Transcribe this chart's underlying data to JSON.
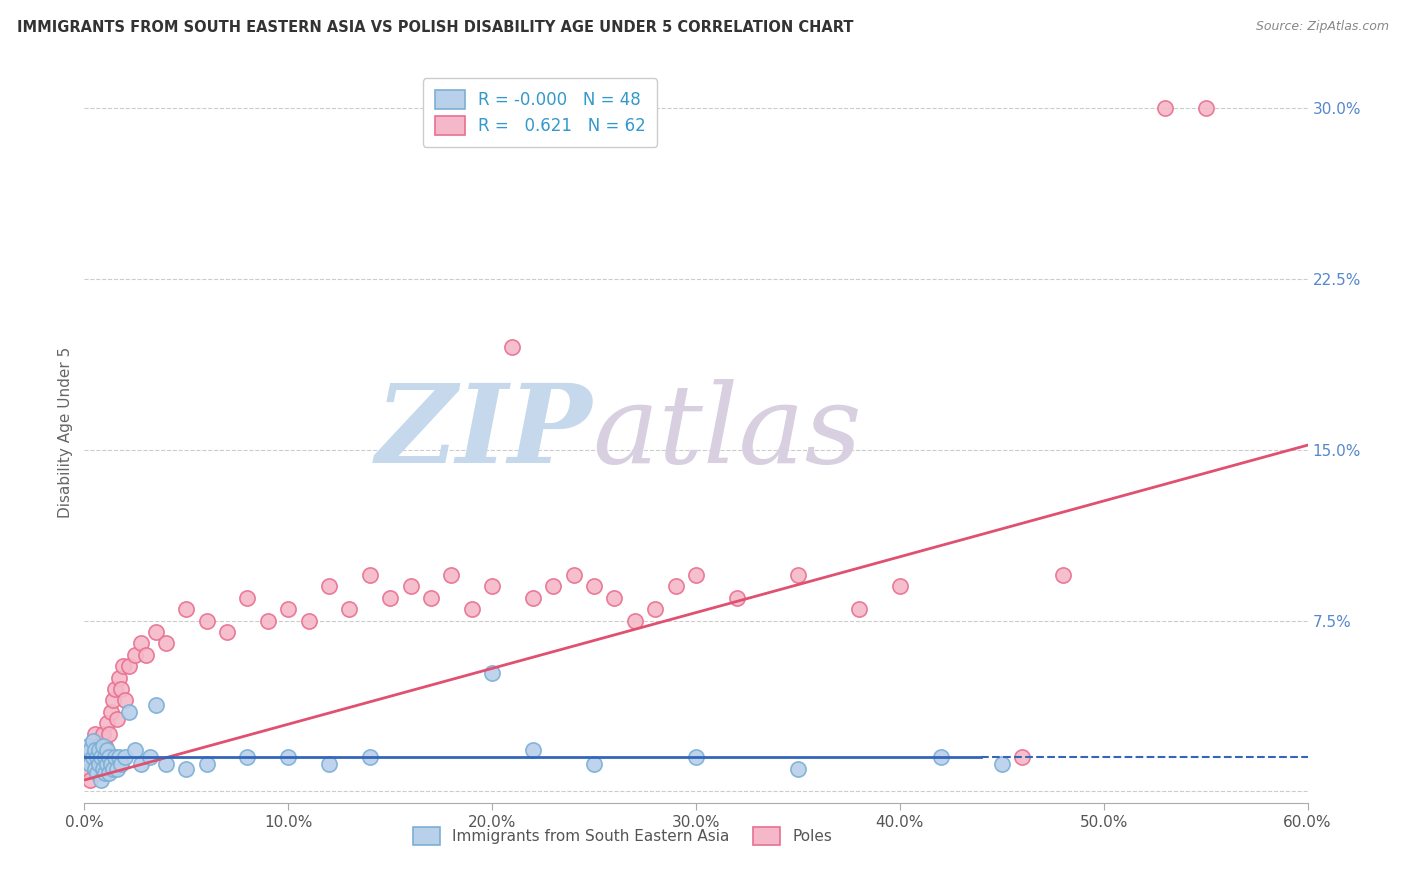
{
  "title": "IMMIGRANTS FROM SOUTH EASTERN ASIA VS POLISH DISABILITY AGE UNDER 5 CORRELATION CHART",
  "source": "Source: ZipAtlas.com",
  "xlabel_vals": [
    0.0,
    10.0,
    20.0,
    30.0,
    40.0,
    50.0,
    60.0
  ],
  "ylabel_vals": [
    0.0,
    7.5,
    15.0,
    22.5,
    30.0
  ],
  "ylabel_label": "Disability Age Under 5",
  "xmin": 0.0,
  "xmax": 60.0,
  "ymin": -0.5,
  "ymax": 32.0,
  "blue_R": "-0.000",
  "blue_N": "48",
  "pink_R": "0.621",
  "pink_N": "62",
  "blue_edge_color": "#7bafd4",
  "blue_face_color": "#b8d0ea",
  "pink_edge_color": "#e87090",
  "pink_face_color": "#f5b8c8",
  "trend_blue_color": "#3366bb",
  "trend_pink_color": "#e05070",
  "legend_label_blue": "Immigrants from South Eastern Asia",
  "legend_label_pink": "Poles",
  "blue_x": [
    0.1,
    0.2,
    0.3,
    0.3,
    0.4,
    0.4,
    0.5,
    0.5,
    0.6,
    0.6,
    0.7,
    0.7,
    0.8,
    0.8,
    0.9,
    0.9,
    1.0,
    1.0,
    1.1,
    1.1,
    1.2,
    1.2,
    1.3,
    1.4,
    1.5,
    1.6,
    1.7,
    1.8,
    2.0,
    2.2,
    2.5,
    2.8,
    3.2,
    3.5,
    4.0,
    5.0,
    6.0,
    8.0,
    10.0,
    12.0,
    14.0,
    20.0,
    22.0,
    25.0,
    30.0,
    35.0,
    42.0,
    45.0
  ],
  "blue_y": [
    1.5,
    2.0,
    1.2,
    1.8,
    1.5,
    2.2,
    1.0,
    1.8,
    0.8,
    1.5,
    1.2,
    1.8,
    0.5,
    1.5,
    1.0,
    2.0,
    0.8,
    1.5,
    1.2,
    1.8,
    0.8,
    1.5,
    1.2,
    1.0,
    1.5,
    1.0,
    1.5,
    1.2,
    1.5,
    3.5,
    1.8,
    1.2,
    1.5,
    3.8,
    1.2,
    1.0,
    1.2,
    1.5,
    1.5,
    1.2,
    1.5,
    5.2,
    1.8,
    1.2,
    1.5,
    1.0,
    1.5,
    1.2
  ],
  "pink_x": [
    0.1,
    0.2,
    0.3,
    0.4,
    0.5,
    0.5,
    0.6,
    0.7,
    0.8,
    0.9,
    1.0,
    1.0,
    1.1,
    1.2,
    1.3,
    1.4,
    1.5,
    1.6,
    1.7,
    1.8,
    1.9,
    2.0,
    2.2,
    2.5,
    2.8,
    3.0,
    3.5,
    4.0,
    5.0,
    6.0,
    7.0,
    8.0,
    9.0,
    10.0,
    11.0,
    12.0,
    13.0,
    14.0,
    15.0,
    16.0,
    17.0,
    18.0,
    19.0,
    20.0,
    21.0,
    22.0,
    23.0,
    24.0,
    25.0,
    26.0,
    27.0,
    28.0,
    29.0,
    30.0,
    32.0,
    35.0,
    38.0,
    40.0,
    46.0,
    48.0,
    53.0,
    55.0
  ],
  "pink_y": [
    1.0,
    1.5,
    0.5,
    2.0,
    1.0,
    2.5,
    1.2,
    2.0,
    1.5,
    2.5,
    1.0,
    2.0,
    3.0,
    2.5,
    3.5,
    4.0,
    4.5,
    3.2,
    5.0,
    4.5,
    5.5,
    4.0,
    5.5,
    6.0,
    6.5,
    6.0,
    7.0,
    6.5,
    8.0,
    7.5,
    7.0,
    8.5,
    7.5,
    8.0,
    7.5,
    9.0,
    8.0,
    9.5,
    8.5,
    9.0,
    8.5,
    9.5,
    8.0,
    9.0,
    19.5,
    8.5,
    9.0,
    9.5,
    9.0,
    8.5,
    7.5,
    8.0,
    9.0,
    9.5,
    8.5,
    9.5,
    8.0,
    9.0,
    1.5,
    9.5,
    30.0,
    30.0
  ],
  "pink_trend_x0": 0.0,
  "pink_trend_y0": 0.5,
  "pink_trend_x1": 60.0,
  "pink_trend_y1": 15.2,
  "blue_trend_y": 1.5,
  "blue_solid_xmax": 44.0
}
